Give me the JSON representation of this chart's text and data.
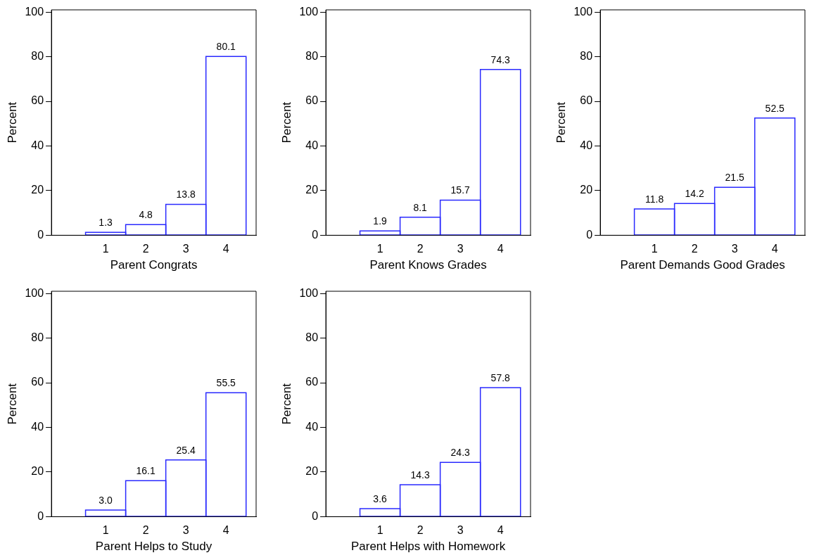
{
  "chart_data": [
    {
      "type": "histogram",
      "xlabel": "Parent Congrats",
      "ylabel": "Percent",
      "bins": [
        0.5,
        1.5,
        2.5,
        3.5,
        4.5
      ],
      "values": [
        1.3,
        4.8,
        13.8,
        80.1
      ],
      "value_labels": [
        "1.3",
        "4.8",
        "13.8",
        "80.1"
      ],
      "color": "#2a2aff",
      "xlim": [
        -0.35,
        4.75
      ],
      "xticks": [
        1,
        2,
        3,
        4
      ],
      "ylim": [
        0,
        101
      ],
      "yticks": [
        0,
        20,
        40,
        60,
        80,
        100
      ],
      "grid": false,
      "legend": false
    },
    {
      "type": "histogram",
      "xlabel": "Parent Knows Grades",
      "ylabel": "Percent",
      "bins": [
        0.5,
        1.5,
        2.5,
        3.5,
        4.5
      ],
      "values": [
        1.9,
        8.1,
        15.7,
        74.3
      ],
      "value_labels": [
        "1.9",
        "8.1",
        "15.7",
        "74.3"
      ],
      "color": "#2a2aff",
      "xlim": [
        -0.35,
        4.75
      ],
      "xticks": [
        1,
        2,
        3,
        4
      ],
      "ylim": [
        0,
        101
      ],
      "yticks": [
        0,
        20,
        40,
        60,
        80,
        100
      ],
      "grid": false,
      "legend": false
    },
    {
      "type": "histogram",
      "xlabel": "Parent Demands Good Grades",
      "ylabel": "Percent",
      "bins": [
        0.5,
        1.5,
        2.5,
        3.5,
        4.5
      ],
      "values": [
        11.8,
        14.2,
        21.5,
        52.5
      ],
      "value_labels": [
        "11.8",
        "14.2",
        "21.5",
        "52.5"
      ],
      "color": "#2a2aff",
      "xlim": [
        -0.35,
        4.75
      ],
      "xticks": [
        1,
        2,
        3,
        4
      ],
      "ylim": [
        0,
        101
      ],
      "yticks": [
        0,
        20,
        40,
        60,
        80,
        100
      ],
      "grid": false,
      "legend": false
    },
    {
      "type": "histogram",
      "xlabel": "Parent Helps to Study",
      "ylabel": "Percent",
      "bins": [
        0.5,
        1.5,
        2.5,
        3.5,
        4.5
      ],
      "values": [
        3.0,
        16.1,
        25.4,
        55.5
      ],
      "value_labels": [
        "3.0",
        "16.1",
        "25.4",
        "55.5"
      ],
      "color": "#2a2aff",
      "xlim": [
        -0.35,
        4.75
      ],
      "xticks": [
        1,
        2,
        3,
        4
      ],
      "ylim": [
        0,
        101
      ],
      "yticks": [
        0,
        20,
        40,
        60,
        80,
        100
      ],
      "grid": false,
      "legend": false
    },
    {
      "type": "histogram",
      "xlabel": "Parent Helps with Homework",
      "ylabel": "Percent",
      "bins": [
        0.5,
        1.5,
        2.5,
        3.5,
        4.5
      ],
      "values": [
        3.6,
        14.3,
        24.3,
        57.8
      ],
      "value_labels": [
        "3.6",
        "14.3",
        "24.3",
        "57.8"
      ],
      "color": "#2a2aff",
      "xlim": [
        -0.35,
        4.75
      ],
      "xticks": [
        1,
        2,
        3,
        4
      ],
      "ylim": [
        0,
        101
      ],
      "yticks": [
        0,
        20,
        40,
        60,
        80,
        100
      ],
      "grid": false,
      "legend": false
    }
  ]
}
